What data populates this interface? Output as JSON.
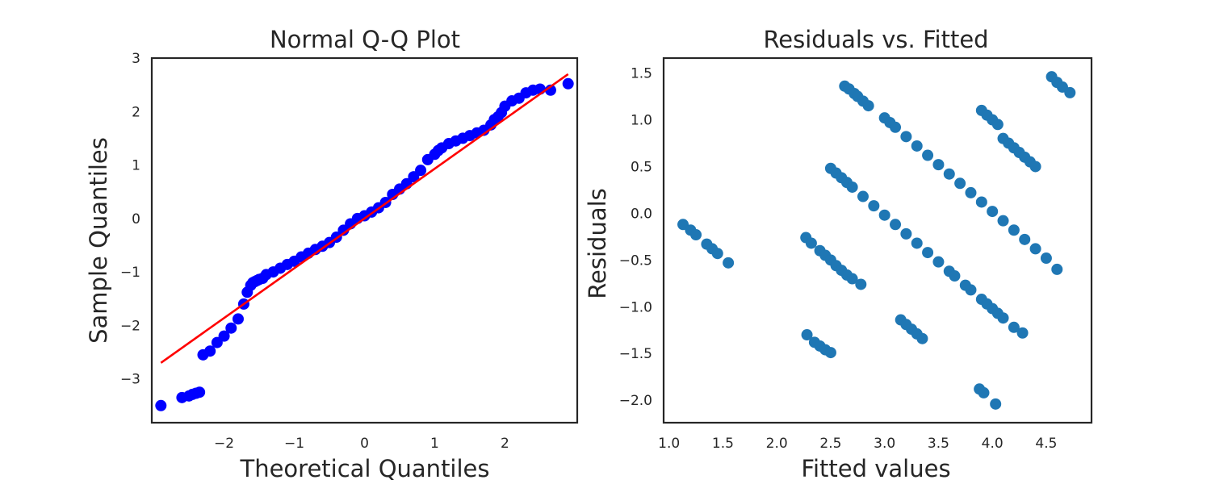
{
  "chart_data": [
    {
      "type": "scatter",
      "title": "Normal Q-Q Plot",
      "xlabel": "Theoretical Quantiles",
      "ylabel": "Sample Quantiles",
      "xlim": [
        -3.03,
        3.03
      ],
      "ylim": [
        -3.82,
        3.0
      ],
      "xticks": [
        -2,
        -1,
        0,
        1,
        2
      ],
      "xtick_labels": [
        "−2",
        "−1",
        "0",
        "1",
        "2"
      ],
      "yticks": [
        -3,
        -2,
        -1,
        0,
        1,
        2,
        3
      ],
      "ytick_labels": [
        "−3",
        "−2",
        "−1",
        "0",
        "1",
        "2",
        "3"
      ],
      "grid": false,
      "marker_color": "#0000ff",
      "line_color": "#ff0000",
      "reference_line": {
        "x": [
          -2.9,
          2.9
        ],
        "y": [
          -2.7,
          2.7
        ]
      },
      "series": [
        {
          "x": [
            -2.9,
            -2.6,
            -2.5,
            -2.45,
            -2.4,
            -2.35,
            -2.3,
            -2.2,
            -2.1,
            -2.0,
            -1.9,
            -1.8,
            -1.72,
            -1.67,
            -1.62,
            -1.59,
            -1.56,
            -1.53,
            -1.5,
            -1.45,
            -1.4,
            -1.3,
            -1.2,
            -1.1,
            -1.0,
            -0.9,
            -0.8,
            -0.7,
            -0.6,
            -0.5,
            -0.4,
            -0.3,
            -0.2,
            -0.1,
            0.0,
            0.1,
            0.2,
            0.3,
            0.4,
            0.5,
            0.6,
            0.7,
            0.8,
            0.9,
            1.0,
            1.05,
            1.1,
            1.2,
            1.3,
            1.4,
            1.5,
            1.6,
            1.7,
            1.8,
            1.85,
            1.9,
            1.95,
            2.0,
            2.1,
            2.2,
            2.3,
            2.4,
            2.5,
            2.65,
            2.9
          ],
          "y": [
            -3.5,
            -3.35,
            -3.32,
            -3.29,
            -3.27,
            -3.25,
            -2.55,
            -2.48,
            -2.32,
            -2.2,
            -2.05,
            -1.88,
            -1.6,
            -1.38,
            -1.25,
            -1.2,
            -1.18,
            -1.16,
            -1.14,
            -1.12,
            -1.05,
            -1.0,
            -0.93,
            -0.86,
            -0.8,
            -0.72,
            -0.65,
            -0.58,
            -0.52,
            -0.45,
            -0.35,
            -0.22,
            -0.1,
            0.0,
            0.05,
            0.12,
            0.2,
            0.3,
            0.45,
            0.55,
            0.65,
            0.78,
            0.9,
            1.1,
            1.2,
            1.27,
            1.32,
            1.4,
            1.45,
            1.5,
            1.55,
            1.6,
            1.65,
            1.75,
            1.85,
            1.9,
            1.98,
            2.1,
            2.2,
            2.25,
            2.35,
            2.4,
            2.42,
            2.4,
            2.52
          ]
        }
      ]
    },
    {
      "type": "scatter",
      "title": "Residuals vs. Fitted",
      "xlabel": "Fitted values",
      "ylabel": "Residuals",
      "xlim": [
        0.95,
        4.92
      ],
      "ylim": [
        -2.24,
        1.66
      ],
      "xticks": [
        1.0,
        1.5,
        2.0,
        2.5,
        3.0,
        3.5,
        4.0,
        4.5
      ],
      "xtick_labels": [
        "1.0",
        "1.5",
        "2.0",
        "2.5",
        "3.0",
        "3.5",
        "4.0",
        "4.5"
      ],
      "yticks": [
        -2.0,
        -1.5,
        -1.0,
        -0.5,
        0.0,
        0.5,
        1.0,
        1.5
      ],
      "ytick_labels": [
        "−2.0",
        "−1.5",
        "−1.0",
        "−0.5",
        "0.0",
        "0.5",
        "1.0",
        "1.5"
      ],
      "grid": false,
      "marker_color": "#1f77b4",
      "series": [
        {
          "x": [
            1.13,
            1.2,
            1.25,
            1.35,
            1.4,
            1.45,
            1.55,
            2.27,
            2.32,
            2.4,
            2.45,
            2.5,
            2.55,
            2.6,
            2.65,
            2.7,
            2.78,
            2.28,
            2.35,
            2.4,
            2.45,
            2.5,
            2.5,
            2.55,
            2.6,
            2.65,
            2.7,
            2.8,
            2.9,
            3.0,
            3.1,
            3.2,
            3.3,
            3.4,
            3.5,
            3.6,
            3.65,
            3.75,
            3.8,
            3.9,
            3.95,
            4.0,
            4.05,
            4.1,
            4.2,
            4.28,
            2.63,
            2.67,
            2.72,
            2.75,
            2.8,
            2.85,
            3.0,
            3.05,
            3.1,
            3.2,
            3.3,
            3.4,
            3.5,
            3.6,
            3.7,
            3.8,
            3.9,
            4.0,
            4.1,
            4.2,
            4.3,
            4.4,
            4.5,
            4.6,
            3.15,
            3.2,
            3.25,
            3.3,
            3.35,
            3.88,
            3.92,
            4.03,
            3.9,
            3.95,
            4.0,
            4.05,
            4.1,
            4.15,
            4.2,
            4.25,
            4.3,
            4.35,
            4.4,
            4.55,
            4.6,
            4.65,
            4.72
          ],
          "y": [
            -0.12,
            -0.18,
            -0.23,
            -0.33,
            -0.38,
            -0.43,
            -0.53,
            -0.26,
            -0.32,
            -0.4,
            -0.45,
            -0.5,
            -0.56,
            -0.61,
            -0.66,
            -0.7,
            -0.76,
            -1.3,
            -1.38,
            -1.42,
            -1.46,
            -1.49,
            0.48,
            0.43,
            0.38,
            0.33,
            0.28,
            0.18,
            0.08,
            -0.02,
            -0.12,
            -0.22,
            -0.32,
            -0.42,
            -0.52,
            -0.62,
            -0.67,
            -0.77,
            -0.82,
            -0.92,
            -0.97,
            -1.02,
            -1.07,
            -1.12,
            -1.22,
            -1.28,
            1.36,
            1.33,
            1.28,
            1.25,
            1.2,
            1.15,
            1.02,
            0.97,
            0.92,
            0.82,
            0.72,
            0.62,
            0.52,
            0.42,
            0.32,
            0.22,
            0.12,
            0.02,
            -0.08,
            -0.18,
            -0.28,
            -0.38,
            -0.48,
            -0.6,
            -1.14,
            -1.19,
            -1.24,
            -1.29,
            -1.34,
            -1.88,
            -1.92,
            -2.04,
            1.1,
            1.05,
            1.0,
            0.95,
            0.8,
            0.75,
            0.7,
            0.65,
            0.6,
            0.55,
            0.5,
            1.46,
            1.4,
            1.35,
            1.29
          ]
        }
      ]
    }
  ]
}
